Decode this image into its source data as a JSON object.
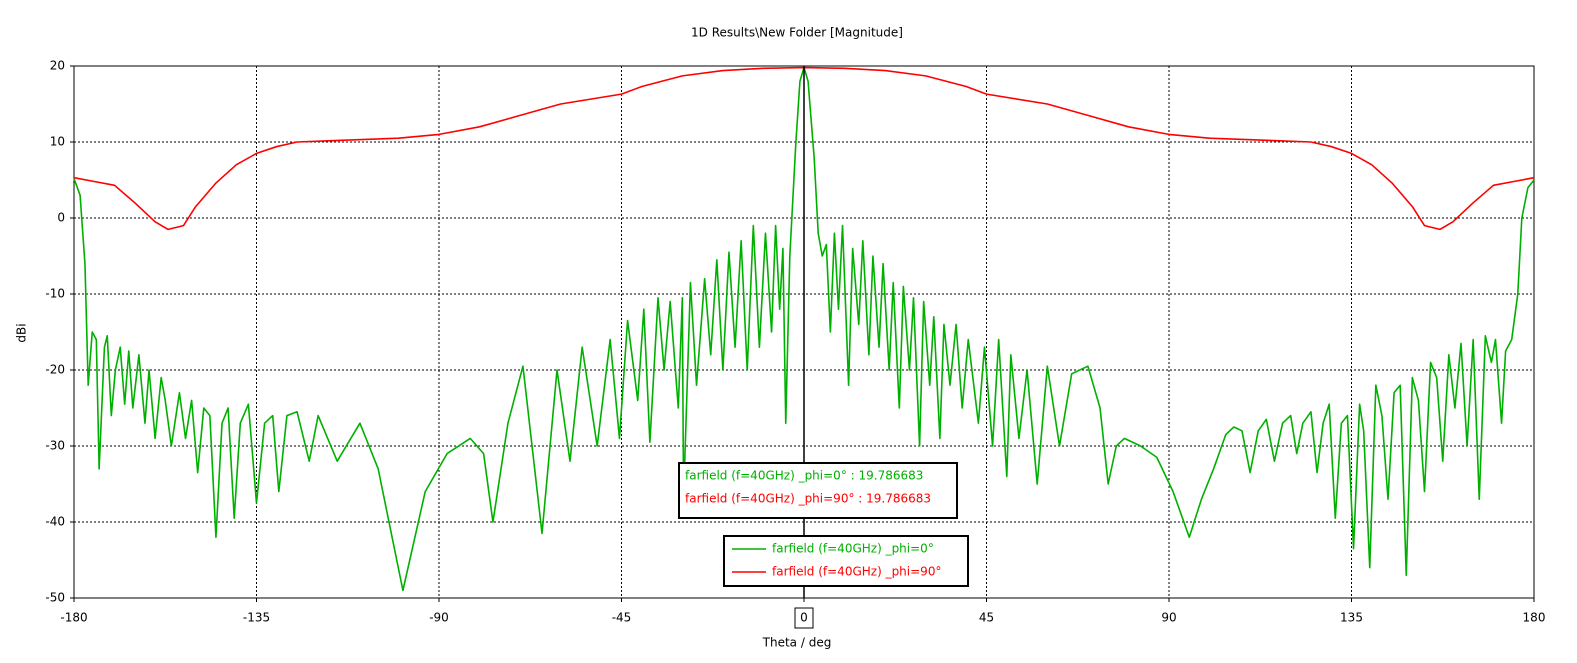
{
  "chart_data": {
    "type": "line",
    "title": "1D Results\\New Folder [Magnitude]",
    "x_label": "Theta / deg",
    "y_label": "dBi",
    "xlim": [
      -180,
      180
    ],
    "ylim": [
      -50,
      20
    ],
    "xticks": [
      -180,
      -135,
      -90,
      -45,
      0,
      45,
      90,
      135,
      180
    ],
    "yticks": [
      -50,
      -40,
      -30,
      -20,
      -10,
      0,
      10,
      20
    ],
    "grid": true,
    "legend": "bottom-center",
    "marker_x": 0,
    "annotations": [
      "farfield (f=40GHz) _phi=0° : 19.786683",
      "farfield (f=40GHz) _phi=90° : 19.786683"
    ],
    "series": [
      {
        "name": "farfield (f=40GHz) _phi=0°",
        "color": "#00b000",
        "x": [
          -180,
          -178.5,
          -177.3,
          -176.5,
          -175.5,
          -174.5,
          -173.8,
          -172.5,
          -171.8,
          -170.8,
          -169.8,
          -168.6,
          -167.5,
          -166.5,
          -165.5,
          -164,
          -162.5,
          -161.5,
          -160,
          -158.5,
          -157.5,
          -156,
          -154,
          -152.5,
          -151,
          -149.5,
          -148,
          -146.5,
          -145,
          -143.5,
          -142,
          -140.5,
          -139,
          -137,
          -135,
          -133,
          -131,
          -129.5,
          -127.5,
          -125,
          -122,
          -119.8,
          -115.1,
          -109.5,
          -105,
          -98.9,
          -93.4,
          -88,
          -82.3,
          -79,
          -76.7,
          -73,
          -69.3,
          -64.6,
          -60.9,
          -57.7,
          -54.7,
          -51,
          -47.8,
          -45.5,
          -43.5,
          -41,
          -39.5,
          -38,
          -36,
          -34.5,
          -33,
          -31,
          -30,
          -29.7,
          -28,
          -26.5,
          -24.5,
          -23,
          -21.5,
          -20,
          -18.5,
          -17,
          -15.5,
          -14,
          -12.5,
          -11,
          -9.5,
          -8,
          -7,
          -6,
          -5.2,
          -4.5,
          -3.5,
          -2,
          -1,
          0,
          1,
          2.5,
          3.5,
          4.5,
          5.5,
          6.5,
          7.5,
          8.5,
          9.5,
          11,
          12,
          13.5,
          14.5,
          16,
          17,
          18.5,
          19.5,
          21,
          22,
          23.5,
          24.5,
          26,
          27,
          28.5,
          29.5,
          31,
          32,
          33.5,
          34.5,
          36,
          37.5,
          39,
          40.5,
          43,
          44.5,
          46.5,
          48,
          50,
          51,
          53,
          55,
          57.5,
          60,
          63,
          66,
          70,
          73,
          75,
          77,
          79,
          83,
          87,
          91,
          95,
          98,
          101,
          104,
          106,
          108,
          110,
          112,
          114,
          116,
          118,
          120,
          121.5,
          123,
          125,
          126.5,
          128,
          129.5,
          131,
          132.5,
          134,
          135.5,
          137,
          138,
          139.5,
          141,
          142.5,
          144,
          145.5,
          147,
          148.5,
          150,
          151.5,
          153,
          154.5,
          156,
          157.5,
          159,
          160.5,
          162,
          163.5,
          165,
          166.5,
          168,
          169.5,
          170.5,
          172,
          173,
          174.5,
          176,
          177,
          178.5,
          180
        ],
        "values": [
          5.2,
          3,
          -6,
          -22,
          -15,
          -16,
          -33,
          -17,
          -15.5,
          -26,
          -20,
          -17,
          -24.5,
          -17.5,
          -25,
          -18,
          -27,
          -20,
          -29,
          -21,
          -24,
          -30,
          -23,
          -29,
          -24,
          -33.5,
          -25,
          -26,
          -42,
          -27,
          -25,
          -39.5,
          -27,
          -24.5,
          -37.5,
          -27,
          -26,
          -36,
          -26,
          -25.5,
          -32,
          -26,
          -32,
          -27,
          -33,
          -49,
          -36,
          -31,
          -29,
          -31,
          -40,
          -27,
          -19.5,
          -41.5,
          -20,
          -32,
          -17,
          -30,
          -16,
          -29,
          -13.5,
          -24,
          -12,
          -29.5,
          -10.5,
          -20,
          -11,
          -25,
          -10.5,
          -37,
          -8.5,
          -22,
          -8,
          -18,
          -5.5,
          -20,
          -4.5,
          -17,
          -3,
          -20,
          -1,
          -17,
          -2,
          -15,
          -1,
          -12,
          -4,
          -27,
          -5,
          10,
          18,
          19.8,
          18,
          8,
          -2,
          -5,
          -3.5,
          -15,
          -2,
          -12,
          -1,
          -22,
          -4,
          -14,
          -3,
          -18,
          -5,
          -17,
          -6,
          -20,
          -8.5,
          -25,
          -9,
          -20,
          -10.5,
          -30,
          -11,
          -22,
          -13,
          -29,
          -14,
          -22,
          -14,
          -25,
          -16,
          -27,
          -17,
          -30,
          -16,
          -34,
          -18,
          -29,
          -20,
          -35,
          -19.5,
          -30,
          -20.5,
          -19.5,
          -25,
          -35,
          -30,
          -29,
          -30,
          -31.5,
          -36,
          -42,
          -37,
          -33,
          -28.5,
          -27.5,
          -28,
          -33.5,
          -28,
          -26.5,
          -32,
          -27,
          -26,
          -31,
          -27,
          -25.5,
          -33.5,
          -27,
          -24.5,
          -39.5,
          -27,
          -26,
          -43.5,
          -24.5,
          -28,
          -46,
          -22,
          -26,
          -37,
          -23,
          -22,
          -47,
          -21,
          -24,
          -36,
          -19,
          -21,
          -32,
          -18,
          -25,
          -16.5,
          -30,
          -16,
          -37,
          -15.5,
          -19,
          -16,
          -27,
          -17.5,
          -16,
          -10,
          0,
          4,
          5
        ]
      },
      {
        "name": "farfield (f=40GHz) _phi=90°",
        "color": "#ff0000",
        "x": [
          -180,
          -175,
          -170,
          -165,
          -160,
          -156.8,
          -153,
          -150,
          -145,
          -140,
          -135,
          -130,
          -125,
          -115,
          -100,
          -90,
          -80,
          -70,
          -60,
          -45,
          -40,
          -30,
          -20,
          -10,
          0,
          10,
          20,
          30,
          40,
          45,
          60,
          70,
          80,
          90,
          100,
          115,
          125,
          130,
          135,
          140,
          145,
          150,
          153,
          156.8,
          160,
          165,
          170,
          175,
          180
        ],
        "values": [
          5.3,
          4.8,
          4.3,
          2,
          -0.5,
          -1.5,
          -1,
          1.5,
          4.6,
          7,
          8.5,
          9.4,
          10,
          10.2,
          10.5,
          11,
          12,
          13.5,
          15,
          16.3,
          17.3,
          18.7,
          19.4,
          19.7,
          19.8,
          19.7,
          19.4,
          18.7,
          17.3,
          16.3,
          15,
          13.5,
          12,
          11,
          10.5,
          10.2,
          10,
          9.4,
          8.5,
          7,
          4.6,
          1.5,
          -1,
          -1.5,
          -0.5,
          2,
          4.3,
          4.8,
          5.3
        ]
      }
    ]
  }
}
